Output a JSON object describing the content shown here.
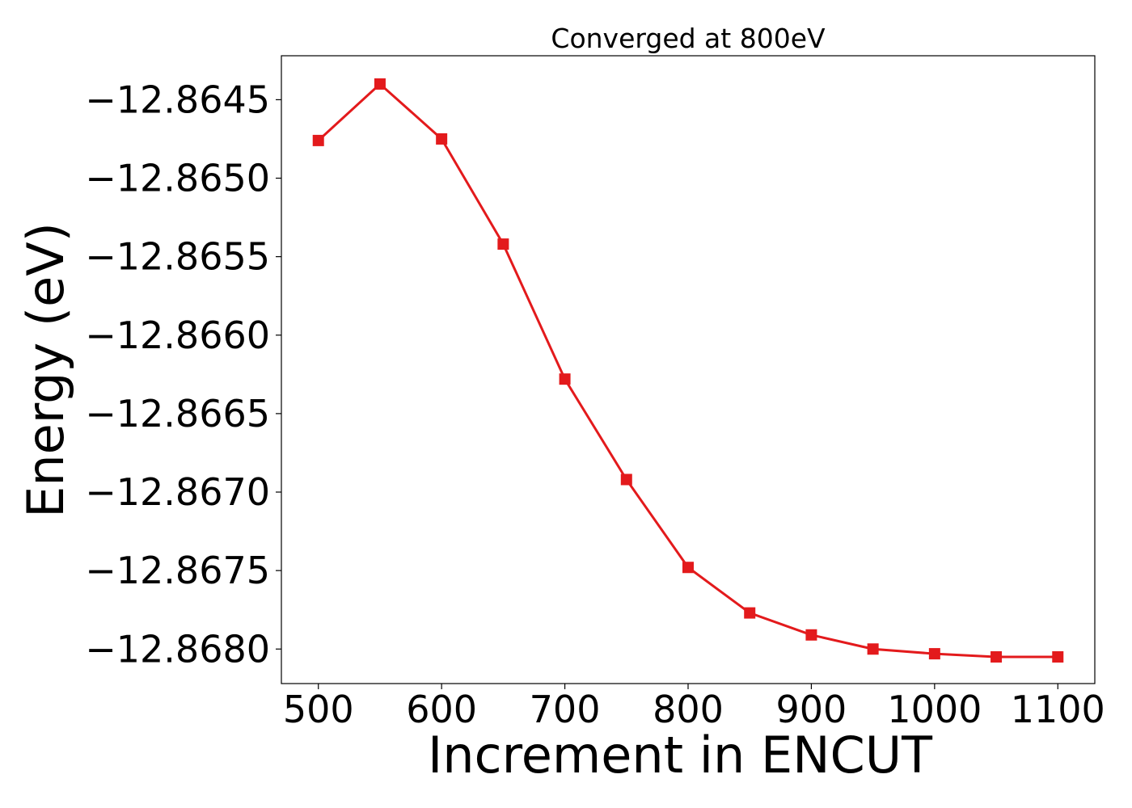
{
  "chart_data": {
    "type": "line",
    "title": "Converged at 800eV",
    "xlabel": "Increment in ENCUT",
    "ylabel": "Energy (eV)",
    "x": [
      500,
      550,
      600,
      650,
      700,
      750,
      800,
      850,
      900,
      950,
      1000,
      1050,
      1100
    ],
    "series": [
      {
        "values": [
          -12.86476,
          -12.8644,
          -12.86475,
          -12.86542,
          -12.86628,
          -12.86692,
          -12.86748,
          -12.86777,
          -12.86791,
          -12.868,
          -12.86803,
          -12.86805,
          -12.86805
        ],
        "color": "#e31a1c",
        "marker": "square"
      }
    ],
    "xlim": [
      470,
      1130
    ],
    "ylim": [
      -12.86822,
      -12.86422
    ],
    "xticks": [
      500,
      600,
      700,
      800,
      900,
      1000,
      1100
    ],
    "xtick_labels": [
      "500",
      "600",
      "700",
      "800",
      "900",
      "1000",
      "1100"
    ],
    "yticks": [
      -12.8645,
      -12.865,
      -12.8655,
      -12.866,
      -12.8665,
      -12.867,
      -12.8675,
      -12.868
    ],
    "ytick_labels": [
      "−12.8645",
      "−12.8650",
      "−12.8655",
      "−12.8660",
      "−12.8665",
      "−12.8670",
      "−12.8675",
      "−12.8680"
    ],
    "grid": false,
    "legend": "none"
  }
}
